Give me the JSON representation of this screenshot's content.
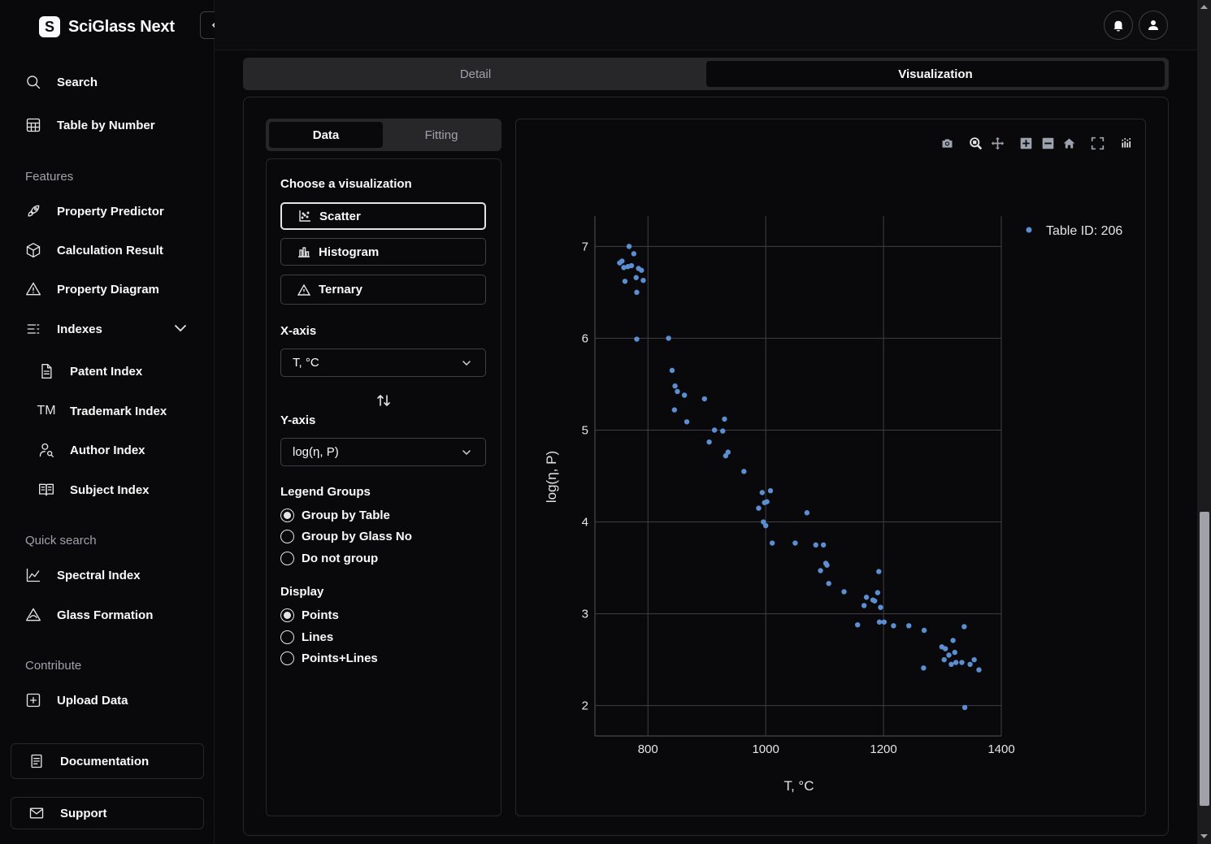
{
  "brand": {
    "logo_letter": "S",
    "name": "SciGlass Next"
  },
  "sidebar": {
    "top_items": [
      {
        "label": "Search",
        "icon": "search-icon"
      },
      {
        "label": "Table by Number",
        "icon": "table-icon"
      }
    ],
    "features_label": "Features",
    "features": [
      {
        "label": "Property Predictor",
        "icon": "rocket-icon"
      },
      {
        "label": "Calculation Result",
        "icon": "cube-icon"
      },
      {
        "label": "Property Diagram",
        "icon": "triangle-icon"
      },
      {
        "label": "Indexes",
        "icon": "list-icon"
      }
    ],
    "indexes": [
      {
        "label": "Patent Index",
        "icon": "document-icon"
      },
      {
        "label": "Trademark Index",
        "icon": "trademark-icon"
      },
      {
        "label": "Author Index",
        "icon": "user-search-icon"
      },
      {
        "label": "Subject Index",
        "icon": "book-icon"
      }
    ],
    "quick_search_label": "Quick search",
    "quick_search": [
      {
        "label": "Spectral Index",
        "icon": "line-chart-icon"
      },
      {
        "label": "Glass Formation",
        "icon": "flask-icon"
      }
    ],
    "contribute_label": "Contribute",
    "contribute": [
      {
        "label": "Upload Data",
        "icon": "plus-square-icon"
      }
    ],
    "documentation": "Documentation",
    "support": "Support"
  },
  "tabs": {
    "detail": "Detail",
    "visualization": "Visualization"
  },
  "subtabs": {
    "data": "Data",
    "fitting": "Fitting"
  },
  "controls": {
    "choose_label": "Choose a visualization",
    "viz_options": [
      "Scatter",
      "Histogram",
      "Ternary"
    ],
    "selected_viz": "Scatter",
    "xaxis_label": "X-axis",
    "xaxis_value": "T, °C",
    "yaxis_label": "Y-axis",
    "yaxis_value": "log(η, P)",
    "legend_groups_label": "Legend Groups",
    "legend_groups": [
      "Group by Table",
      "Group by Glass No",
      "Do not group"
    ],
    "legend_selected": 0,
    "display_label": "Display",
    "display_options": [
      "Points",
      "Lines",
      "Points+Lines"
    ],
    "display_selected": 0
  },
  "chart_data": {
    "type": "scatter",
    "xlabel": "T, °C",
    "ylabel": "log(η, P)",
    "xlim": [
      710,
      1400
    ],
    "ylim": [
      1.67,
      7.33
    ],
    "xticks": [
      800,
      1000,
      1200,
      1400
    ],
    "yticks": [
      2,
      3,
      4,
      5,
      6,
      7
    ],
    "grid": true,
    "legend_position": "top-right",
    "marker_color": "#5b8fd1",
    "series": [
      {
        "name": "Table ID: 206",
        "points": [
          [
            752,
            6.82
          ],
          [
            756,
            6.84
          ],
          [
            759,
            6.77
          ],
          [
            761,
            6.62
          ],
          [
            766,
            6.78
          ],
          [
            768,
            7.0
          ],
          [
            772,
            6.79
          ],
          [
            776,
            6.92
          ],
          [
            780,
            6.66
          ],
          [
            781,
            6.5
          ],
          [
            781,
            5.99
          ],
          [
            784,
            6.76
          ],
          [
            789,
            6.74
          ],
          [
            792,
            6.63
          ],
          [
            835,
            6.0
          ],
          [
            841,
            5.65
          ],
          [
            845,
            5.22
          ],
          [
            846,
            5.48
          ],
          [
            850,
            5.42
          ],
          [
            862,
            5.38
          ],
          [
            866,
            5.09
          ],
          [
            896,
            5.34
          ],
          [
            904,
            4.87
          ],
          [
            913,
            5.0
          ],
          [
            927,
            4.99
          ],
          [
            930,
            5.12
          ],
          [
            932,
            4.72
          ],
          [
            936,
            4.76
          ],
          [
            963,
            4.55
          ],
          [
            988,
            4.15
          ],
          [
            994,
            4.32
          ],
          [
            996,
            4.0
          ],
          [
            998,
            4.21
          ],
          [
            1000,
            3.96
          ],
          [
            1002,
            4.22
          ],
          [
            1008,
            4.34
          ],
          [
            1011,
            3.77
          ],
          [
            1050,
            3.77
          ],
          [
            1070,
            4.1
          ],
          [
            1085,
            3.75
          ],
          [
            1093,
            3.47
          ],
          [
            1098,
            3.75
          ],
          [
            1102,
            3.55
          ],
          [
            1104,
            3.53
          ],
          [
            1107,
            3.33
          ],
          [
            1133,
            3.24
          ],
          [
            1156,
            2.88
          ],
          [
            1167,
            3.09
          ],
          [
            1171,
            3.18
          ],
          [
            1182,
            3.15
          ],
          [
            1185,
            3.14
          ],
          [
            1190,
            3.23
          ],
          [
            1192,
            3.46
          ],
          [
            1193,
            2.91
          ],
          [
            1195,
            3.07
          ],
          [
            1201,
            2.91
          ],
          [
            1217,
            2.87
          ],
          [
            1243,
            2.87
          ],
          [
            1268,
            2.41
          ],
          [
            1269,
            2.82
          ],
          [
            1299,
            2.64
          ],
          [
            1303,
            2.5
          ],
          [
            1305,
            2.62
          ],
          [
            1311,
            2.55
          ],
          [
            1315,
            2.45
          ],
          [
            1318,
            2.71
          ],
          [
            1321,
            2.58
          ],
          [
            1323,
            2.47
          ],
          [
            1333,
            2.47
          ],
          [
            1337,
            2.86
          ],
          [
            1338,
            1.98
          ],
          [
            1347,
            2.45
          ],
          [
            1354,
            2.5
          ],
          [
            1362,
            2.39
          ]
        ]
      }
    ]
  },
  "modebar": [
    "camera-icon",
    "zoom-icon",
    "pan-icon",
    "zoom-in-icon",
    "zoom-out-icon",
    "home-icon",
    "fullscreen-icon",
    "plotly-logo-icon"
  ]
}
